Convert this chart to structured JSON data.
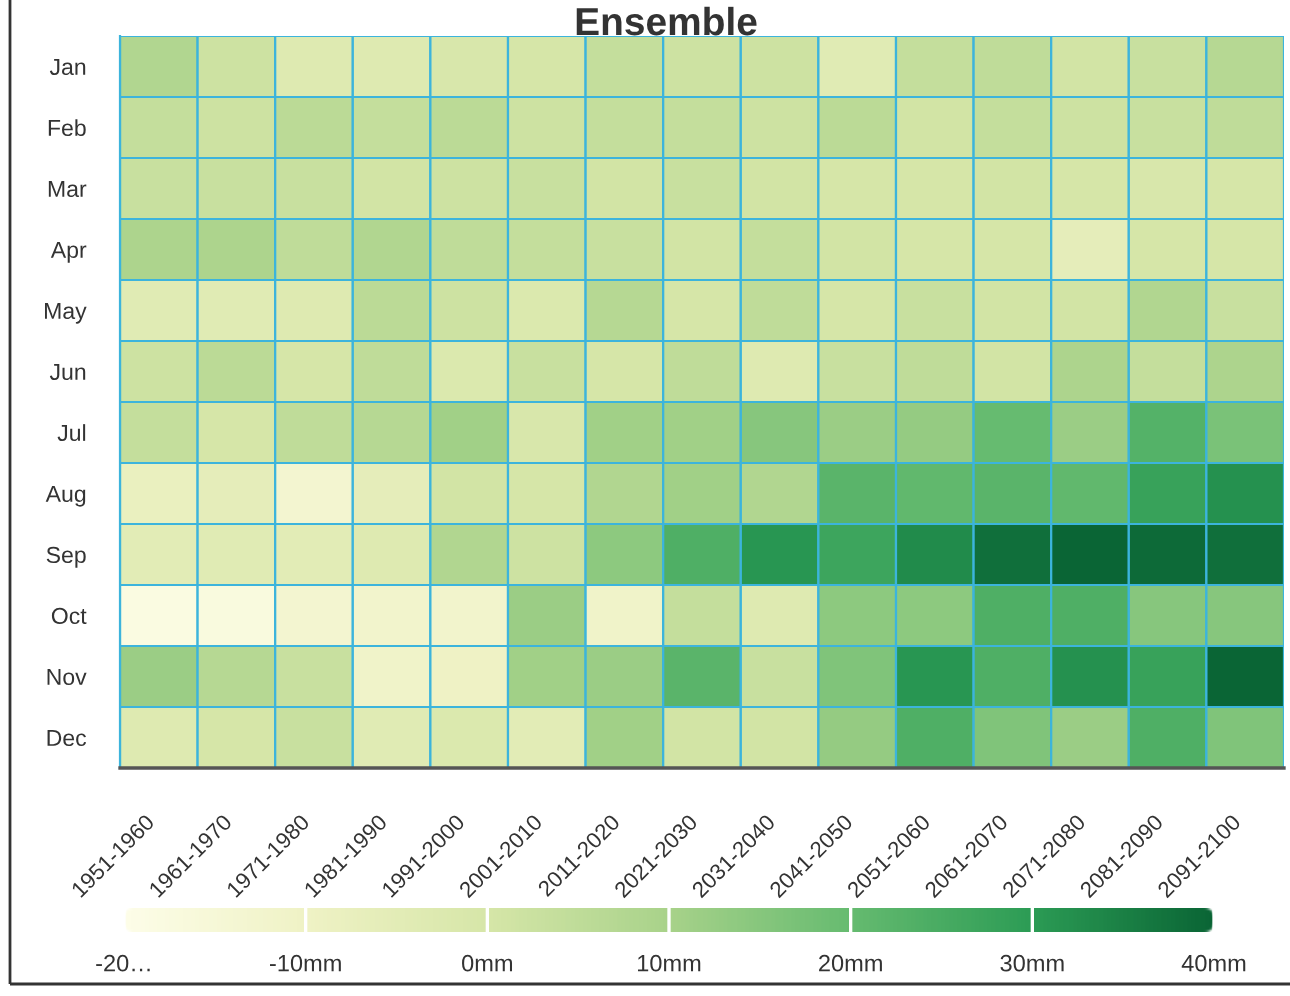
{
  "chart_data": {
    "type": "heatmap",
    "title": "Ensemble",
    "categories": [
      "1951-1960",
      "1961-1970",
      "1971-1980",
      "1981-1990",
      "1991-2000",
      "2001-2010",
      "2011-2020",
      "2021-2030",
      "2031-2040",
      "2041-2050",
      "2051-2060",
      "2061-2070",
      "2071-2080",
      "2081-2090",
      "2091-2100"
    ],
    "y_categories": [
      "Jan",
      "Feb",
      "Mar",
      "Apr",
      "May",
      "Jun",
      "Jul",
      "Aug",
      "Sep",
      "Oct",
      "Nov",
      "Dec"
    ],
    "cells": [
      [
        8,
        2,
        -3,
        -3,
        -1,
        0,
        4,
        2,
        2,
        -4,
        4,
        5,
        1,
        3,
        7
      ],
      [
        4,
        2,
        6,
        4,
        6,
        2,
        4,
        4,
        2,
        6,
        1,
        4,
        2,
        3,
        5
      ],
      [
        3,
        3,
        3,
        1,
        2,
        3,
        1,
        3,
        1,
        0,
        0,
        1,
        0,
        -1,
        0
      ],
      [
        9,
        9,
        5,
        8,
        5,
        4,
        3,
        1,
        4,
        1,
        0,
        0,
        -6,
        0,
        0
      ],
      [
        -4,
        -4,
        -3,
        6,
        2,
        -2,
        7,
        0,
        5,
        0,
        3,
        1,
        1,
        8,
        3
      ],
      [
        2,
        6,
        0,
        5,
        -2,
        3,
        0,
        5,
        -3,
        3,
        5,
        1,
        9,
        4,
        9
      ],
      [
        4,
        0,
        5,
        7,
        11,
        -1,
        11,
        11,
        15,
        12,
        13,
        20,
        12,
        23,
        17
      ],
      [
        -8,
        -6,
        -13,
        -6,
        1,
        0,
        8,
        11,
        8,
        22,
        21,
        22,
        21,
        28,
        32
      ],
      [
        -5,
        -4,
        -5,
        -3,
        8,
        2,
        14,
        24,
        31,
        27,
        33,
        38,
        40,
        39,
        38
      ],
      [
        -18,
        -17,
        -13,
        -12,
        -12,
        12,
        -11,
        4,
        -3,
        14,
        14,
        24,
        24,
        15,
        15
      ],
      [
        12,
        7,
        3,
        -11,
        -10,
        11,
        12,
        22,
        3,
        16,
        31,
        24,
        32,
        28,
        40
      ],
      [
        -3,
        0,
        3,
        -4,
        -2,
        -5,
        11,
        1,
        1,
        13,
        24,
        16,
        12,
        24,
        16
      ]
    ],
    "clim": [
      -20,
      40
    ],
    "cticks": [
      {
        "value": -20,
        "label": "-20…"
      },
      {
        "value": -10,
        "label": "-10mm"
      },
      {
        "value": 0,
        "label": "0mm"
      },
      {
        "value": 10,
        "label": "10mm"
      },
      {
        "value": 20,
        "label": "20mm"
      },
      {
        "value": 30,
        "label": "30mm"
      },
      {
        "value": 40,
        "label": "40mm"
      }
    ]
  }
}
